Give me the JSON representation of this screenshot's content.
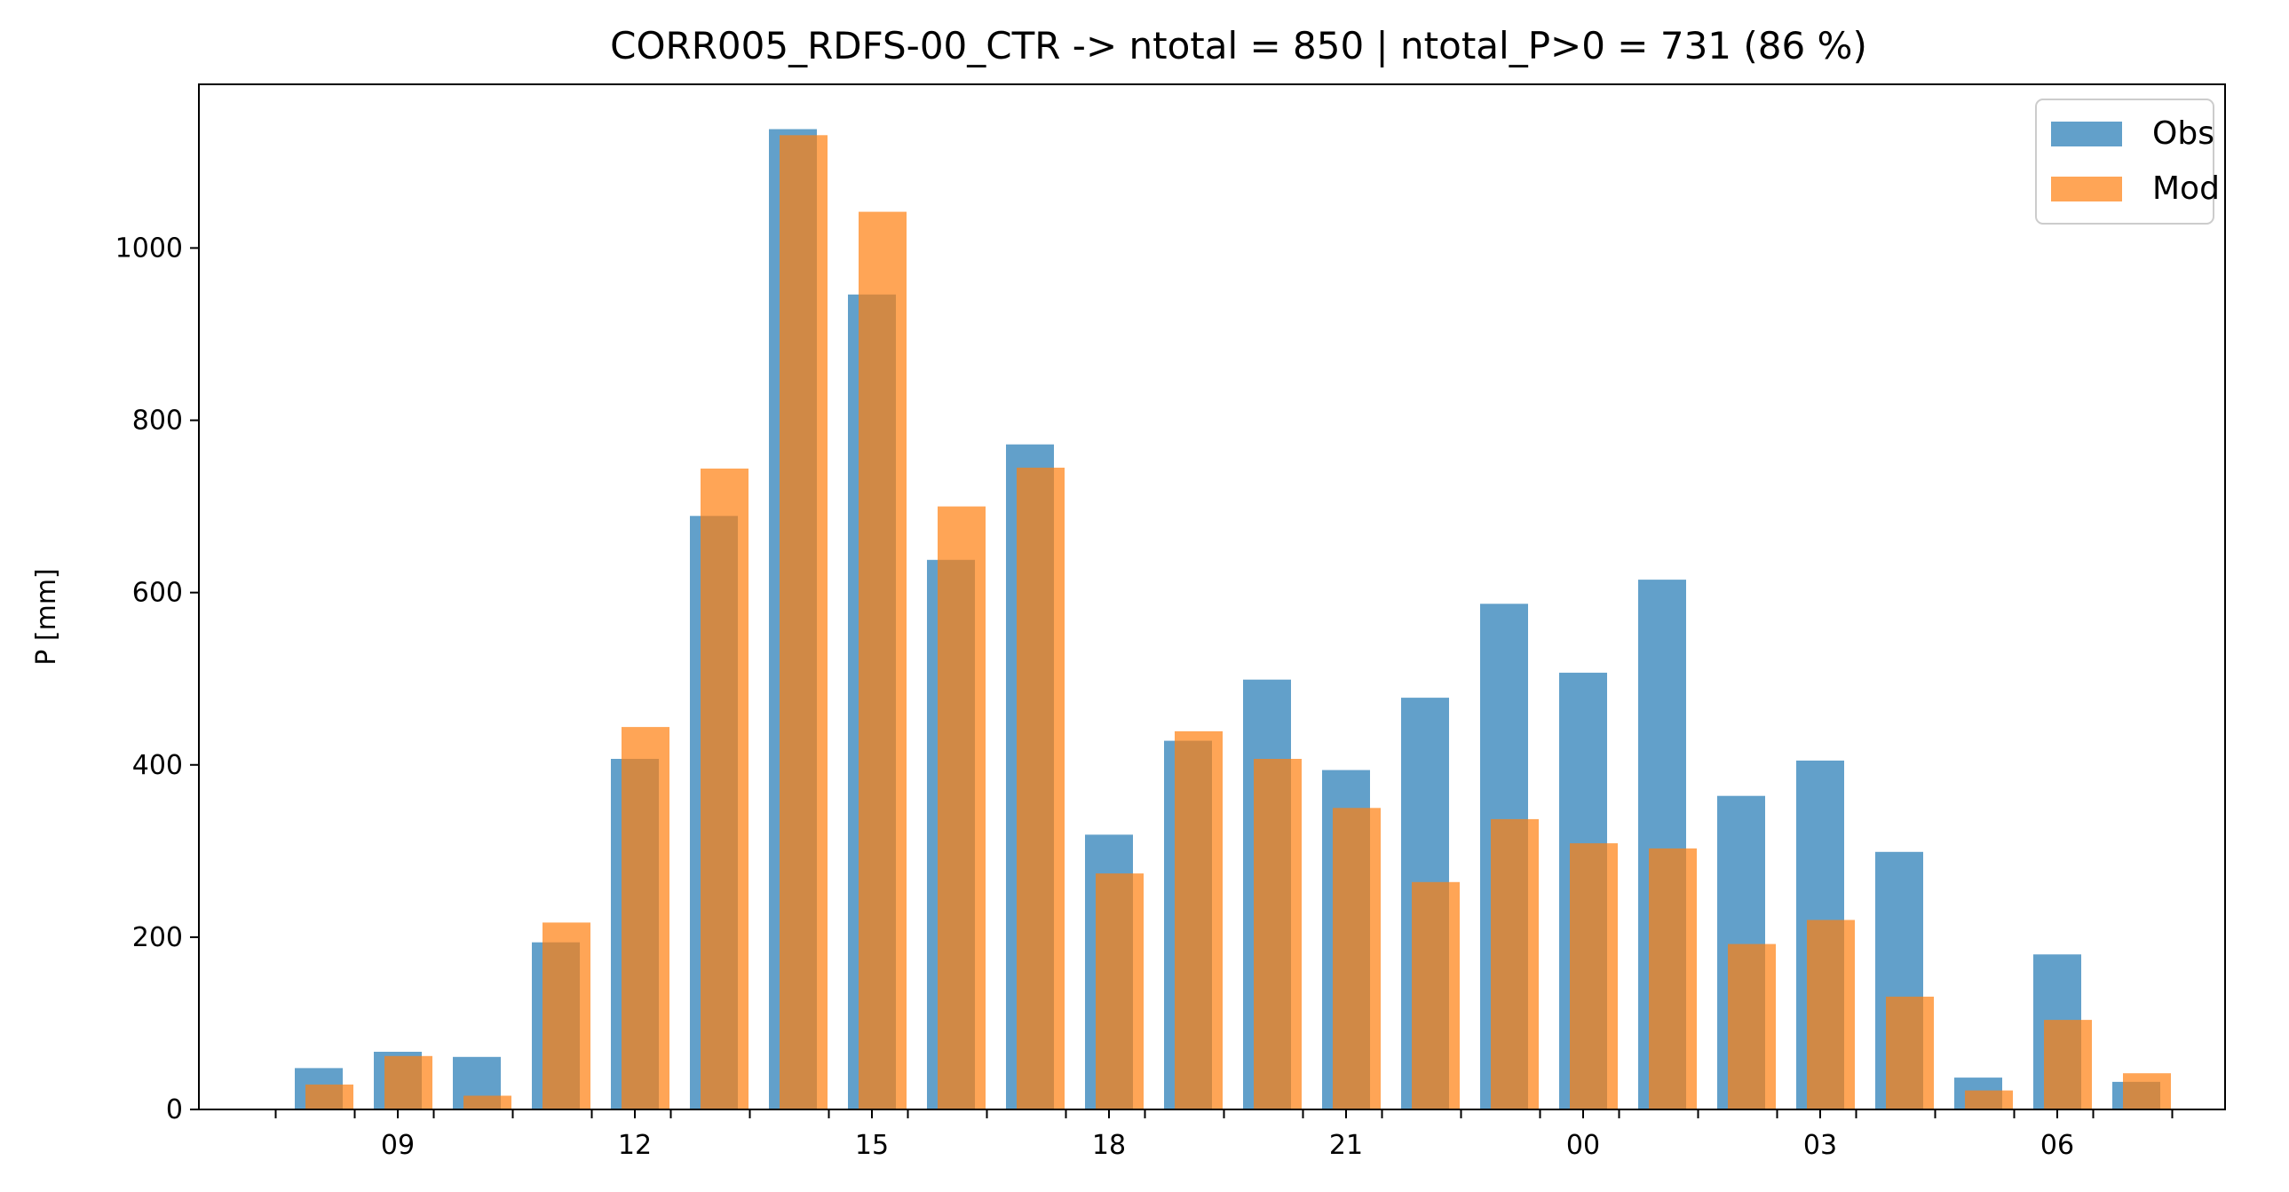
{
  "chart_data": {
    "type": "bar",
    "title": "CORR005_RDFS-00_CTR -> ntotal = 850 | ntotal_P>0 = 731 (86 %)",
    "xlabel": "",
    "ylabel": "P [mm]",
    "ylim": [
      0,
      1190
    ],
    "yticks": [
      0,
      200,
      400,
      600,
      800,
      1000
    ],
    "x_hours": [
      8,
      9,
      10,
      11,
      12,
      13,
      14,
      15,
      16,
      17,
      18,
      19,
      20,
      21,
      22,
      23,
      0,
      1,
      2,
      3,
      4,
      5,
      6,
      7
    ],
    "x_labeled_ticks": [
      "09",
      "12",
      "15",
      "18",
      "21",
      "00",
      "03",
      "06"
    ],
    "legend": {
      "position": "top-right",
      "entries": [
        "Obs",
        "Mod"
      ]
    },
    "series": [
      {
        "name": "Obs",
        "color": "#1f77b4",
        "values": [
          48,
          67,
          61,
          194,
          407,
          689,
          1138,
          946,
          638,
          772,
          319,
          428,
          499,
          394,
          478,
          587,
          507,
          615,
          364,
          405,
          299,
          37,
          180,
          32
        ]
      },
      {
        "name": "Mod",
        "color": "#ff7f0e",
        "values": [
          29,
          62,
          16,
          217,
          444,
          744,
          1131,
          1042,
          700,
          745,
          274,
          439,
          407,
          350,
          264,
          337,
          309,
          303,
          192,
          220,
          131,
          22,
          104,
          42
        ]
      }
    ],
    "grid": false
  }
}
